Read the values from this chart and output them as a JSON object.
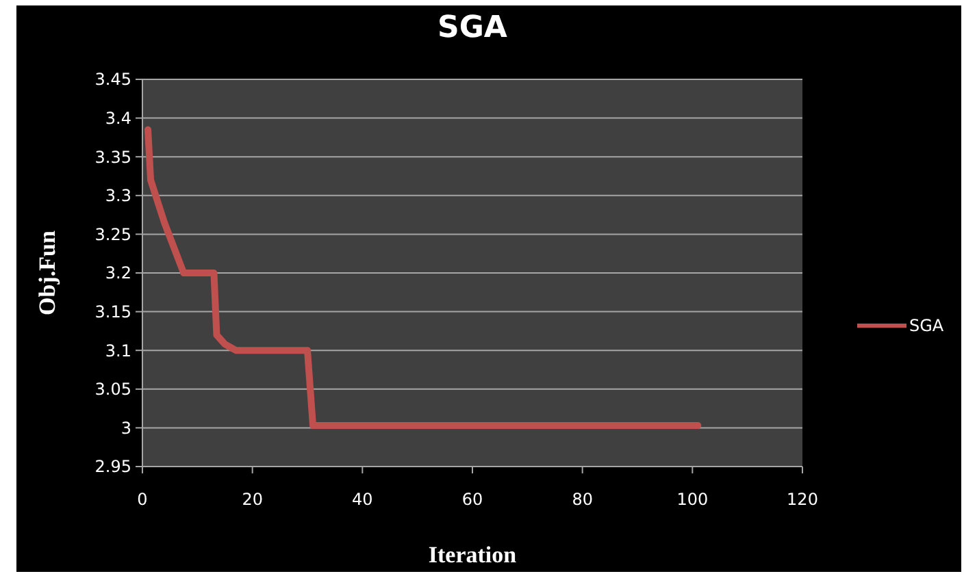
{
  "chart_data": {
    "type": "line",
    "title": "SGA",
    "xlabel": "Iteration",
    "ylabel": "Obj.Fun",
    "xlim": [
      0,
      120
    ],
    "xticks": [
      0,
      20,
      40,
      60,
      80,
      100,
      120
    ],
    "ylim": [
      2.95,
      3.45
    ],
    "yticks": [
      2.95,
      3,
      3.05,
      3.1,
      3.15,
      3.2,
      3.25,
      3.3,
      3.35,
      3.4,
      3.45
    ],
    "grid": "y",
    "legend": "right",
    "marker": "none",
    "line_style": "solid",
    "series": [
      {
        "name": "SGA",
        "color": "#c0504d",
        "x": [
          1,
          1.5,
          4,
          7.5,
          13,
          13.5,
          15,
          17,
          30,
          31,
          101
        ],
        "values": [
          3.385,
          3.32,
          3.265,
          3.2,
          3.2,
          3.12,
          3.108,
          3.1,
          3.1,
          3.003,
          3.003
        ]
      }
    ]
  }
}
